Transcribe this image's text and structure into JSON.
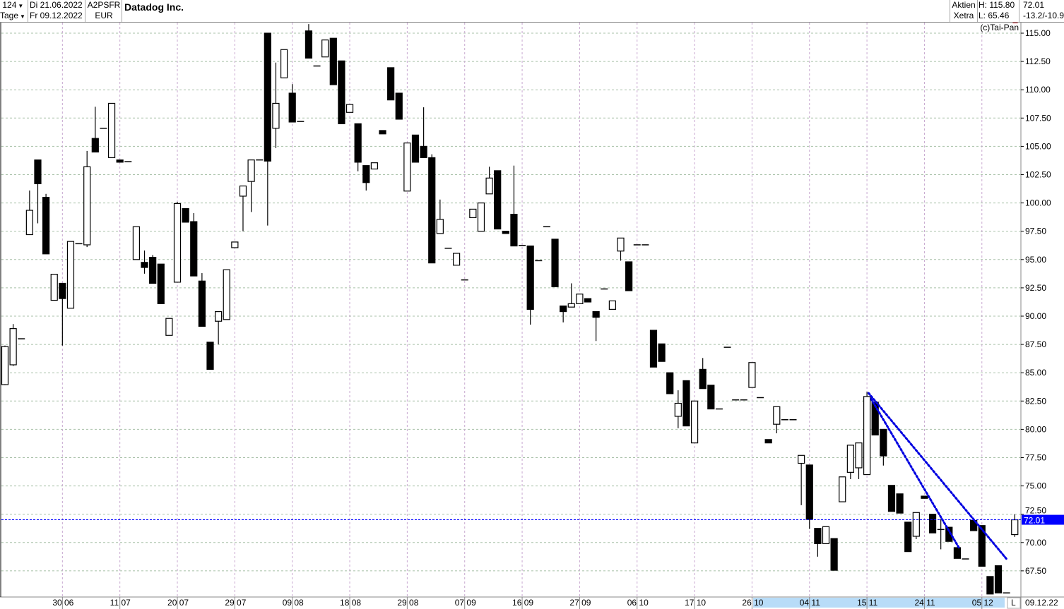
{
  "header": {
    "period_count": "124",
    "period_unit": "Tage",
    "date_from": "Di 21.06.2022",
    "date_to": "Fr 09.12.2022",
    "wkn": "A2PSFR",
    "currency": "EUR",
    "instrument_name": "Datadog Inc.",
    "asset_type": "Aktien",
    "exchange": "Xetra",
    "high": "H: 115.80",
    "low": "L: 65.46",
    "last_price": "72.01",
    "change": "-13.2/-10.9",
    "copyright": "(c)Tai-Pan",
    "dropdown_icon": "triangle-down-icon"
  },
  "footer": {
    "scale_mode": "L",
    "last_date": "09.12.22"
  },
  "colors": {
    "up_candle": "#ffffff",
    "down_candle": "#000000",
    "trendline": "#0000e0",
    "last_price_line": "#0000ff",
    "last_price_label_bg": "#0000ff",
    "grid_vertical": "#c8a8d0",
    "grid_horizontal": "#a8c0a8",
    "date_band": "#b8dcf8"
  },
  "chart_data": {
    "type": "candlestick",
    "title": "Datadog Inc.",
    "ylim": [
      65,
      116
    ],
    "y_ticks": [
      "67.50",
      "70.00",
      "72.50",
      "75.00",
      "77.50",
      "80.00",
      "82.50",
      "85.00",
      "87.50",
      "90.00",
      "92.50",
      "95.00",
      "97.50",
      "100.00",
      "102.50",
      "105.00",
      "107.50",
      "110.00",
      "112.50",
      "115.00"
    ],
    "date_ticks": [
      {
        "label": "30 06",
        "index": 7
      },
      {
        "label": "11 07",
        "index": 14
      },
      {
        "label": "20 07",
        "index": 21
      },
      {
        "label": "29 07",
        "index": 28
      },
      {
        "label": "09 08",
        "index": 35
      },
      {
        "label": "18 08",
        "index": 42
      },
      {
        "label": "29 08",
        "index": 49
      },
      {
        "label": "07 09",
        "index": 56
      },
      {
        "label": "16 09",
        "index": 63
      },
      {
        "label": "27 09",
        "index": 70
      },
      {
        "label": "06 10",
        "index": 77
      },
      {
        "label": "17 10",
        "index": 84
      },
      {
        "label": "26 10",
        "index": 91
      },
      {
        "label": "04 11",
        "index": 98
      },
      {
        "label": "15 11",
        "index": 105
      },
      {
        "label": "24 11",
        "index": 112
      },
      {
        "label": "05 12",
        "index": 119
      }
    ],
    "grid": true,
    "last_price": 72.01,
    "candles_ohlc": [
      [
        83.95,
        87.4,
        83.9,
        87.32
      ],
      [
        85.7,
        89.3,
        85.6,
        88.9
      ],
      [
        88.0,
        88.0,
        88.0,
        88.0
      ],
      [
        97.2,
        101.1,
        97.2,
        99.35
      ],
      [
        103.8,
        103.8,
        98.2,
        101.7
      ],
      [
        100.5,
        100.8,
        95.5,
        95.5
      ],
      [
        91.4,
        93.7,
        91.4,
        93.7
      ],
      [
        92.9,
        92.9,
        87.4,
        91.55
      ],
      [
        90.7,
        96.6,
        90.7,
        96.6
      ],
      [
        96.4,
        96.4,
        96.4,
        96.4
      ],
      [
        96.3,
        104.6,
        96.1,
        103.2
      ],
      [
        105.7,
        108.5,
        104.5,
        104.5
      ],
      [
        106.6,
        106.6,
        106.6,
        106.6
      ],
      [
        104.0,
        108.8,
        104.0,
        108.8
      ],
      [
        103.8,
        103.8,
        103.6,
        103.6
      ],
      [
        103.65,
        103.65,
        103.65,
        103.65
      ],
      [
        95.0,
        97.9,
        95.0,
        97.9
      ],
      [
        94.75,
        95.8,
        93.75,
        94.3
      ],
      [
        95.2,
        95.4,
        92.9,
        92.9
      ],
      [
        94.6,
        94.6,
        91.1,
        91.1
      ],
      [
        88.3,
        89.8,
        88.3,
        89.8
      ],
      [
        93.0,
        100.1,
        93.0,
        99.95
      ],
      [
        99.5,
        99.5,
        98.3,
        98.3
      ],
      [
        98.35,
        99.1,
        93.55,
        93.55
      ],
      [
        93.1,
        93.8,
        89.1,
        89.1
      ],
      [
        87.7,
        87.7,
        85.3,
        85.3
      ],
      [
        89.55,
        90.4,
        87.5,
        90.4
      ],
      [
        89.7,
        94.1,
        89.7,
        94.1
      ],
      [
        96.05,
        96.55,
        96.05,
        96.55
      ],
      [
        100.6,
        101.5,
        97.5,
        101.5
      ],
      [
        101.9,
        103.8,
        99.2,
        103.8
      ],
      [
        103.8,
        103.8,
        103.8,
        103.8
      ],
      [
        115.0,
        115.0,
        98.0,
        103.7
      ],
      [
        106.6,
        112.4,
        104.85,
        108.8
      ],
      [
        111.05,
        113.55,
        111.05,
        113.55
      ],
      [
        109.7,
        110.5,
        107.15,
        107.15
      ],
      [
        107.2,
        107.2,
        107.2,
        107.2
      ],
      [
        115.2,
        115.8,
        112.8,
        112.8
      ],
      [
        112.1,
        112.1,
        112.1,
        112.1
      ],
      [
        112.9,
        114.4,
        112.9,
        114.4
      ],
      [
        114.55,
        114.55,
        110.45,
        110.45
      ],
      [
        112.55,
        112.55,
        107.0,
        107.0
      ],
      [
        108.0,
        108.7,
        108.0,
        108.7
      ],
      [
        107.0,
        107.0,
        102.8,
        103.6
      ],
      [
        103.3,
        103.3,
        101.1,
        101.8
      ],
      [
        103.0,
        103.55,
        103.0,
        103.55
      ],
      [
        106.4,
        106.4,
        106.1,
        106.1
      ],
      [
        111.95,
        111.95,
        109.1,
        109.1
      ],
      [
        109.7,
        109.7,
        107.4,
        107.4
      ],
      [
        101.05,
        105.3,
        101.05,
        105.3
      ],
      [
        106.0,
        106.0,
        103.6,
        103.6
      ],
      [
        105.0,
        108.45,
        104.0,
        104.0
      ],
      [
        104.0,
        104.3,
        94.7,
        94.7
      ],
      [
        97.3,
        100.3,
        97.3,
        98.55
      ],
      [
        96.0,
        96.0,
        96.0,
        96.0
      ],
      [
        94.5,
        95.55,
        94.5,
        95.55
      ],
      [
        93.2,
        93.2,
        93.2,
        93.2
      ],
      [
        98.7,
        99.45,
        98.7,
        99.45
      ],
      [
        97.5,
        100.0,
        97.5,
        100.0
      ],
      [
        100.8,
        103.2,
        100.8,
        102.2
      ],
      [
        102.85,
        102.85,
        97.7,
        97.7
      ],
      [
        97.5,
        97.5,
        97.3,
        97.3
      ],
      [
        99.0,
        103.3,
        96.2,
        96.2
      ],
      [
        96.25,
        96.25,
        96.25,
        96.25
      ],
      [
        96.2,
        96.2,
        89.25,
        90.6
      ],
      [
        94.9,
        94.9,
        94.9,
        94.9
      ],
      [
        97.9,
        97.9,
        97.9,
        97.9
      ],
      [
        96.8,
        96.8,
        92.6,
        92.6
      ],
      [
        90.9,
        90.9,
        89.45,
        90.4
      ],
      [
        90.8,
        92.9,
        90.8,
        91.1
      ],
      [
        91.1,
        91.95,
        91.1,
        91.95
      ],
      [
        91.55,
        91.55,
        91.25,
        91.25
      ],
      [
        90.4,
        90.4,
        87.8,
        89.9
      ],
      [
        92.4,
        92.4,
        92.4,
        92.4
      ],
      [
        90.6,
        91.35,
        90.6,
        91.35
      ],
      [
        95.75,
        96.9,
        94.9,
        96.9
      ],
      [
        94.8,
        94.8,
        92.25,
        92.25
      ],
      [
        96.3,
        96.3,
        96.3,
        96.3
      ],
      [
        96.3,
        96.3,
        96.3,
        96.3
      ],
      [
        88.75,
        88.75,
        85.5,
        85.5
      ],
      [
        87.55,
        87.55,
        86.0,
        86.0
      ],
      [
        85.0,
        85.0,
        83.15,
        83.15
      ],
      [
        81.15,
        83.45,
        80.1,
        82.3
      ],
      [
        84.3,
        84.3,
        80.3,
        80.3
      ],
      [
        78.8,
        82.5,
        78.8,
        82.5
      ],
      [
        85.3,
        86.3,
        83.6,
        83.6
      ],
      [
        83.9,
        83.9,
        81.8,
        81.8
      ],
      [
        81.8,
        81.8,
        81.8,
        81.8
      ],
      [
        87.25,
        87.25,
        87.25,
        87.25
      ],
      [
        82.6,
        82.6,
        82.6,
        82.6
      ],
      [
        82.6,
        82.6,
        82.6,
        82.6
      ],
      [
        83.7,
        85.9,
        83.7,
        85.9
      ],
      [
        82.8,
        82.8,
        82.8,
        82.8
      ],
      [
        79.1,
        79.1,
        78.8,
        78.8
      ],
      [
        80.45,
        82.0,
        79.65,
        82.0
      ],
      [
        80.85,
        80.85,
        80.85,
        80.85
      ],
      [
        80.85,
        80.85,
        80.85,
        80.85
      ],
      [
        77.0,
        77.7,
        73.3,
        77.7
      ],
      [
        76.85,
        76.85,
        71.2,
        72.05
      ],
      [
        71.25,
        71.25,
        68.75,
        69.9
      ],
      [
        69.9,
        71.4,
        69.9,
        71.4
      ],
      [
        70.35,
        70.35,
        67.55,
        67.55
      ],
      [
        73.6,
        75.8,
        73.6,
        75.8
      ],
      [
        76.2,
        78.6,
        75.6,
        78.6
      ],
      [
        76.6,
        78.8,
        75.6,
        78.8
      ],
      [
        76.0,
        83.3,
        76.0,
        82.9
      ],
      [
        82.4,
        82.4,
        79.5,
        79.5
      ],
      [
        80.0,
        80.0,
        76.8,
        77.65
      ],
      [
        75.05,
        75.05,
        72.75,
        72.75
      ],
      [
        74.3,
        74.3,
        72.6,
        72.6
      ],
      [
        71.8,
        71.8,
        69.2,
        69.2
      ],
      [
        70.55,
        72.65,
        70.3,
        72.65
      ],
      [
        74.1,
        74.1,
        73.9,
        73.9
      ],
      [
        72.5,
        72.5,
        70.85,
        70.85
      ],
      [
        71.15,
        72.1,
        69.4,
        71.15
      ],
      [
        71.35,
        71.35,
        70.1,
        70.1
      ],
      [
        69.55,
        69.55,
        68.6,
        68.6
      ],
      [
        68.55,
        68.55,
        68.55,
        68.55
      ],
      [
        71.95,
        71.95,
        71.05,
        71.05
      ],
      [
        71.5,
        71.5,
        67.9,
        67.9
      ],
      [
        67.0,
        67.0,
        65.45,
        65.45
      ],
      [
        67.95,
        67.95,
        65.55,
        65.55
      ],
      [
        65.55,
        65.55,
        65.55,
        65.55
      ],
      [
        70.7,
        72.5,
        70.5,
        72.01
      ]
    ],
    "trendlines": [
      {
        "from": {
          "index": 105.2,
          "price": 83.2
        },
        "to": {
          "index": 122,
          "price": 68.55
        }
      },
      {
        "from": {
          "index": 105.5,
          "price": 82.7
        },
        "to": {
          "index": 116.2,
          "price": 69.55
        }
      }
    ]
  }
}
